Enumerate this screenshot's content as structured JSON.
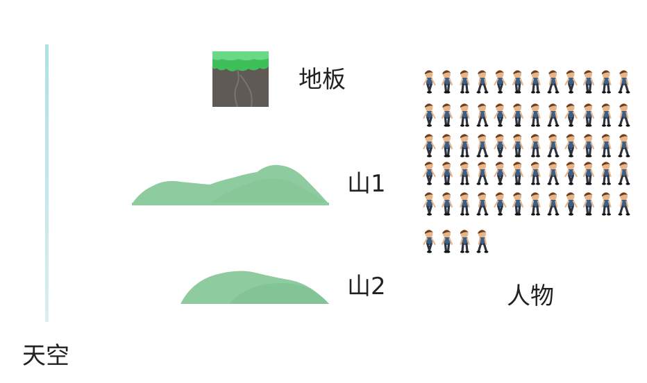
{
  "labels": {
    "floor": "地板",
    "mountain1": "山1",
    "mountain2": "山2",
    "character": "人物",
    "sky": "天空"
  },
  "colors": {
    "sky_bar": "#b9e4ea",
    "floor_grass": "#3fbf5a",
    "floor_soil": "#5f5a55",
    "mountain": "#8ecb9f",
    "character_shirt": "#3d5f86",
    "character_hair": "#6b3d1f"
  },
  "sprite_sheet": {
    "frames_per_row": [
      12,
      12,
      12,
      12,
      12,
      4
    ],
    "icon": "running-character-frames"
  }
}
